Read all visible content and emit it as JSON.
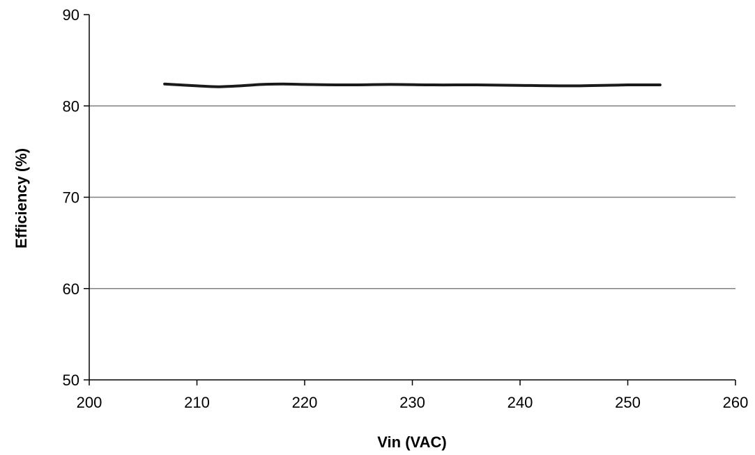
{
  "chart_data": {
    "type": "line",
    "title": "",
    "xlabel": "Vin (VAC)",
    "ylabel": "Efficiency (%)",
    "xlim": [
      200,
      260
    ],
    "ylim": [
      50,
      90
    ],
    "xticks": [
      200,
      210,
      220,
      230,
      240,
      250,
      260
    ],
    "yticks": [
      50,
      60,
      70,
      80,
      90
    ],
    "grid": "horizontal",
    "legend": "none",
    "series": [
      {
        "color": "#1a1a1a",
        "x": [
          207,
          210,
          212,
          214,
          216,
          218,
          220,
          224,
          228,
          232,
          236,
          240,
          245,
          250,
          253
        ],
        "values": [
          82.4,
          82.2,
          82.1,
          82.2,
          82.35,
          82.4,
          82.35,
          82.3,
          82.35,
          82.3,
          82.3,
          82.25,
          82.2,
          82.3,
          82.3
        ]
      }
    ]
  },
  "colors": {
    "axis": "#000000",
    "grid": "#808080",
    "line": "#1a1a1a"
  }
}
